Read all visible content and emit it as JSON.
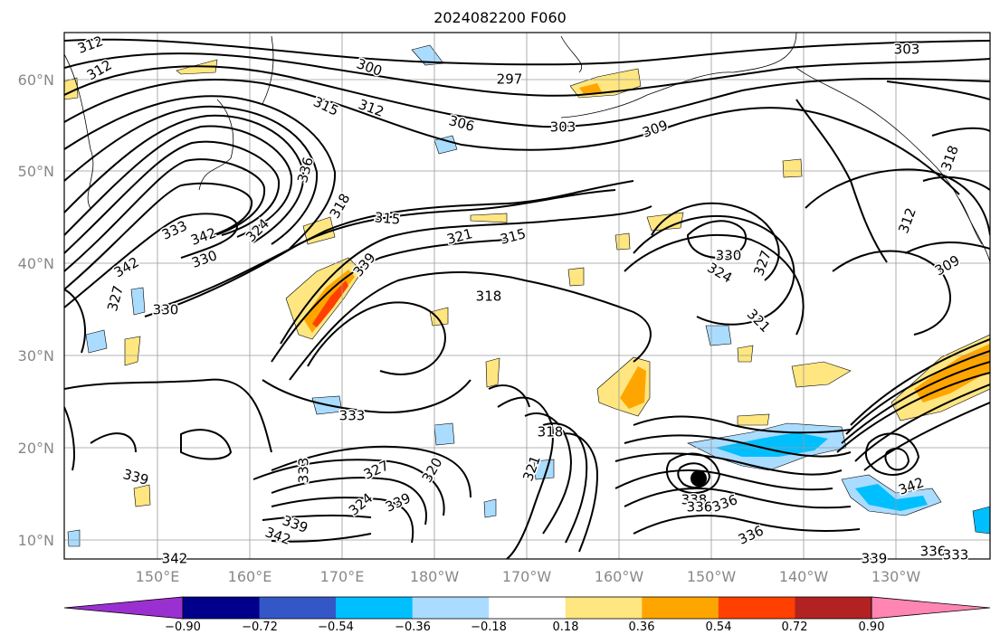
{
  "title": "2024082200 F060",
  "map": {
    "lat_labels": [
      "60°N",
      "50°N",
      "40°N",
      "30°N",
      "20°N",
      "10°N"
    ],
    "lon_labels": [
      "150°E",
      "160°E",
      "170°E",
      "180°W",
      "170°W",
      "160°W",
      "150°W",
      "140°W",
      "130°W"
    ],
    "contour_labels": [
      "312",
      "312",
      "300",
      "297",
      "303",
      "315",
      "312",
      "306",
      "303",
      "309",
      "336",
      "318",
      "315",
      "321",
      "315",
      "330",
      "324",
      "327",
      "312",
      "309",
      "333",
      "342",
      "324",
      "330",
      "342",
      "327",
      "318",
      "321",
      "330",
      "318",
      "333",
      "339",
      "339",
      "333",
      "327",
      "320",
      "321",
      "318",
      "324",
      "339",
      "339",
      "342",
      "342",
      "338",
      "336",
      "336",
      "336",
      "342",
      "339",
      "336",
      "333"
    ]
  },
  "colorbar": {
    "colors": [
      "#9b30d0",
      "#00008b",
      "#3457c8",
      "#00bfff",
      "#aadcff",
      "#ffffff",
      "#ffe680",
      "#ffa500",
      "#ff4000",
      "#b22222",
      "#ff85b3"
    ],
    "tick_labels": [
      "−0.90",
      "−0.72",
      "−0.54",
      "−0.36",
      "−0.18",
      "0.18",
      "0.36",
      "0.54",
      "0.72",
      "0.90"
    ]
  }
}
